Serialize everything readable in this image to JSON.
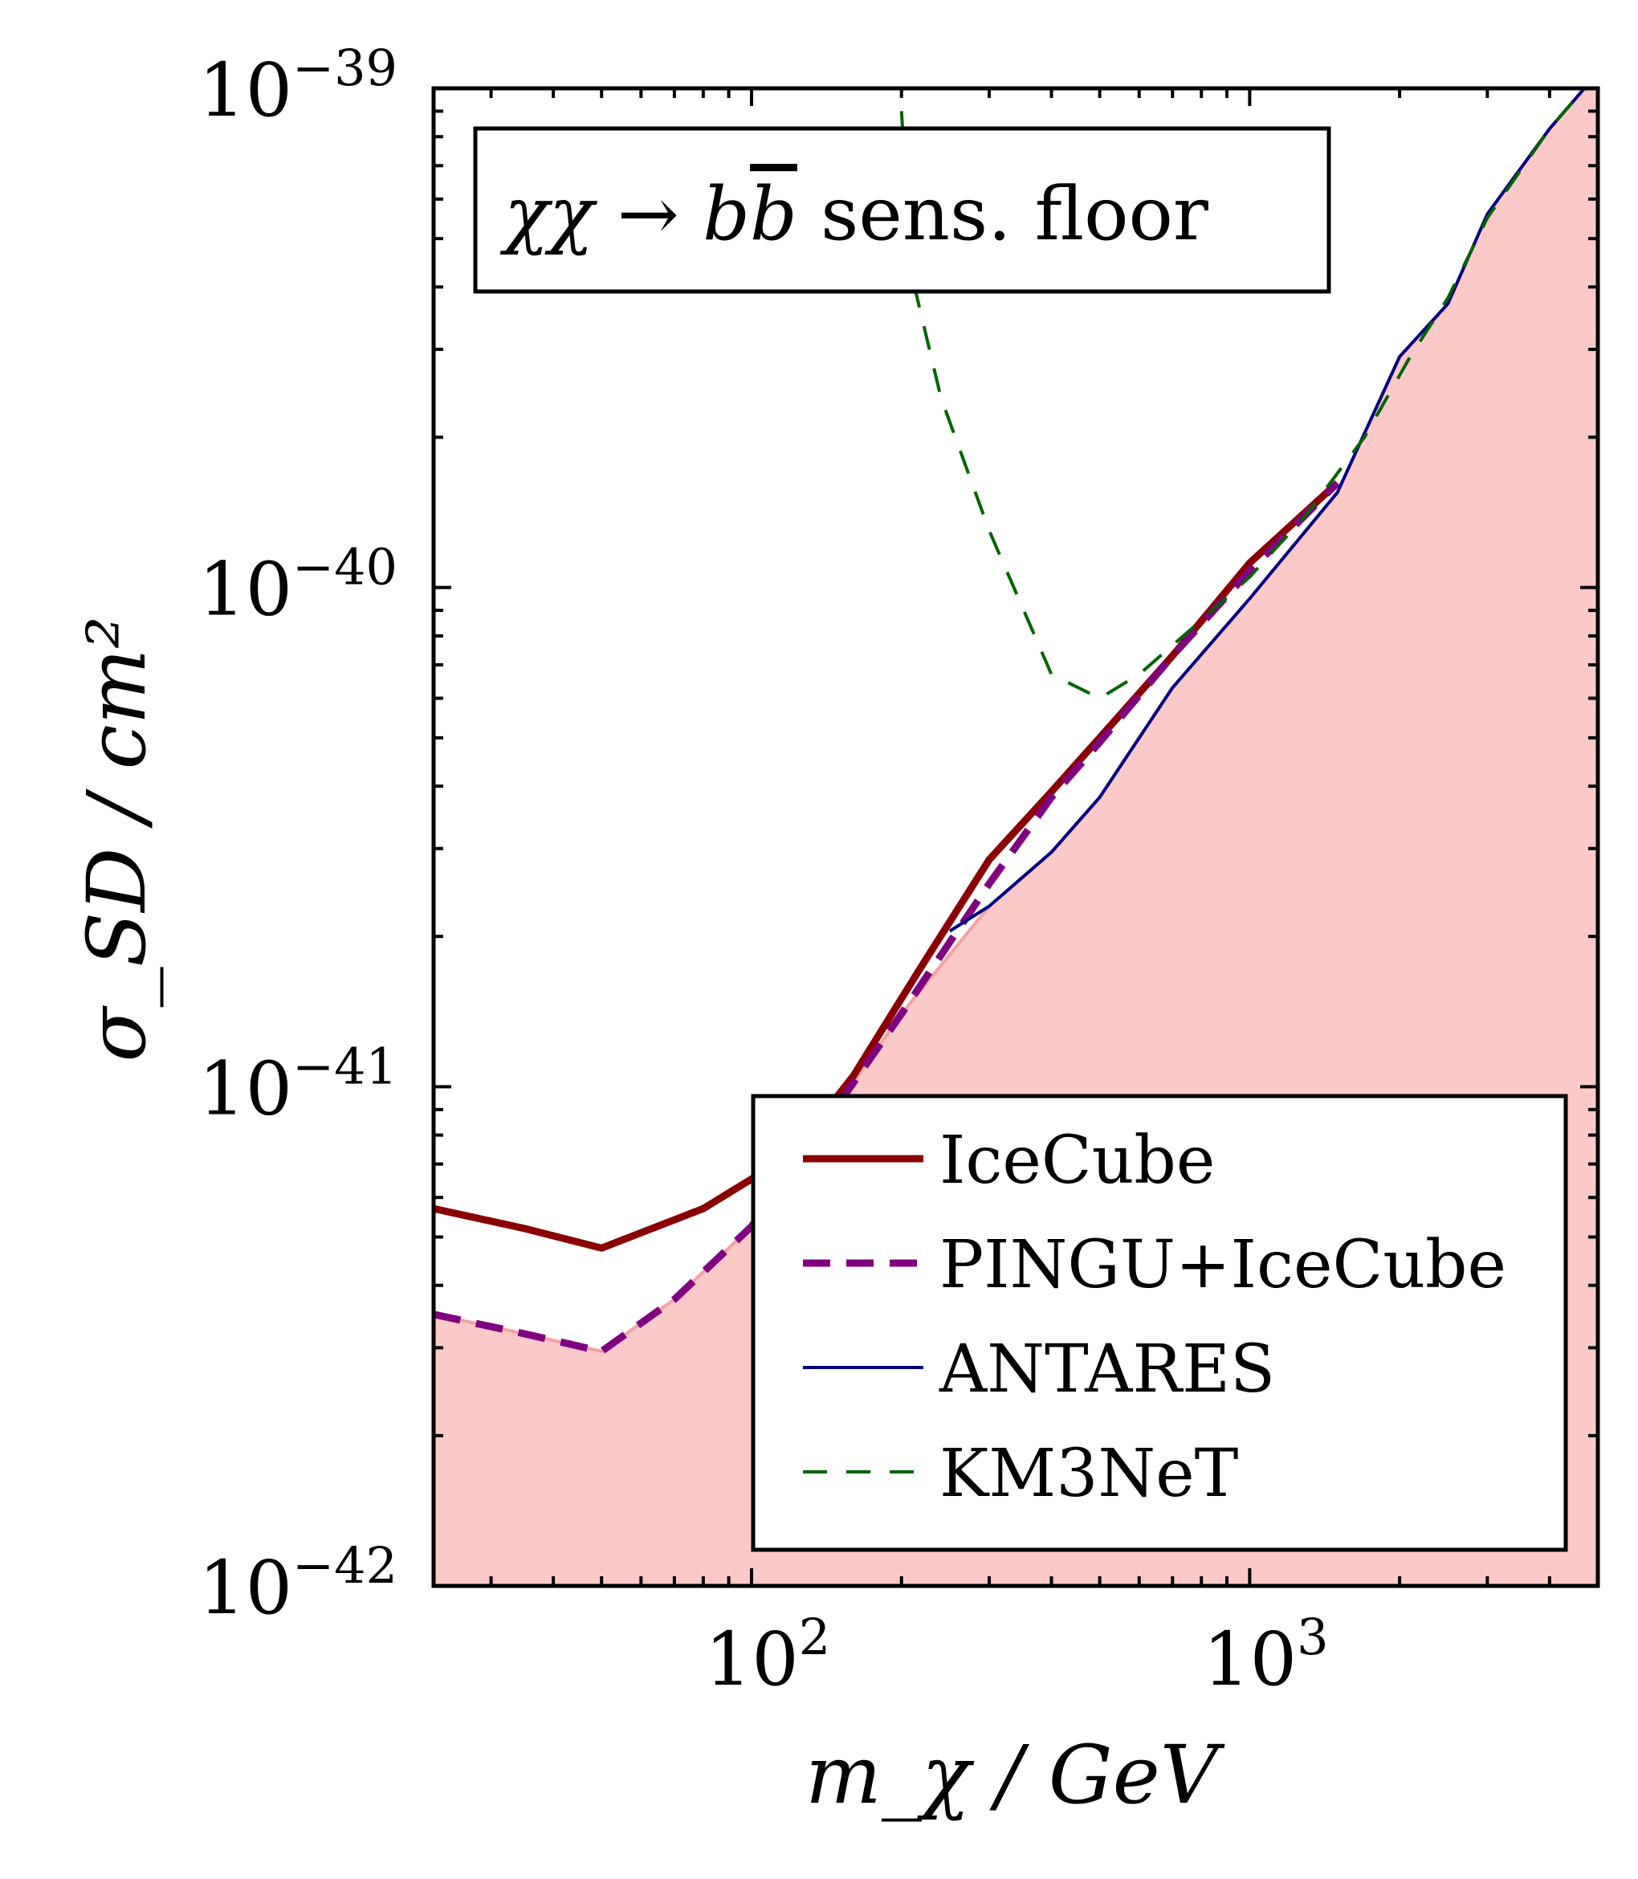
{
  "chart_data": {
    "type": "line",
    "title": "",
    "xlabel": "m_χ / GeV",
    "ylabel": "σ_SD / cm²",
    "xscale": "log",
    "yscale": "log",
    "xlim": [
      23,
      5000
    ],
    "ylim": [
      1e-42,
      1e-39
    ],
    "x_ticks": [
      {
        "value": 100,
        "base": "10",
        "exp": "2"
      },
      {
        "value": 1000,
        "base": "10",
        "exp": "3"
      }
    ],
    "y_ticks": [
      {
        "value": 1e-42,
        "base": "10",
        "exp": "−42"
      },
      {
        "value": 1e-41,
        "base": "10",
        "exp": "−41"
      },
      {
        "value": 1e-40,
        "base": "10",
        "exp": "−40"
      },
      {
        "value": 1e-39,
        "base": "10",
        "exp": "−39"
      }
    ],
    "annotation": {
      "text_main": "χχ → b",
      "text_bar": "b",
      "text_tail": " sens.  floor",
      "location": "top-left"
    },
    "legend_location": "lower-right",
    "fill": {
      "name": "sensitivity floor",
      "color": "#fcc9c9",
      "edge_color": "#f5a0a0"
    },
    "series": [
      {
        "name": "IceCube",
        "color": "#8b0000",
        "style": "solid",
        "width": 9,
        "x": [
          23,
          35,
          50,
          80,
          120,
          160,
          220,
          300,
          400,
          500,
          700,
          1000,
          1500
        ],
        "y": [
          5.7e-42,
          5.2e-42,
          4.75e-42,
          5.7e-42,
          7.3e-42,
          1.05e-41,
          1.75e-41,
          2.85e-41,
          3.9e-41,
          5e-41,
          7.3e-41,
          1.12e-40,
          1.62e-40
        ]
      },
      {
        "name": "PINGU+IceCube",
        "color": "#800080",
        "style": "dashed",
        "width": 9,
        "x": [
          23,
          35,
          50,
          70,
          100,
          140,
          200,
          300,
          400,
          500,
          700,
          1000,
          1500
        ],
        "y": [
          3.5e-42,
          3.2e-42,
          2.95e-42,
          3.75e-42,
          5.25e-42,
          8.4e-42,
          1.4e-41,
          2.55e-41,
          3.8e-41,
          4.9e-41,
          7.3e-41,
          1.08e-40,
          1.62e-40
        ]
      },
      {
        "name": "ANTARES",
        "color": "#000080",
        "style": "solid",
        "width": 4,
        "x": [
          250,
          300,
          400,
          500,
          700,
          1000,
          1500,
          2000,
          2500,
          3000,
          4000,
          4700
        ],
        "y": [
          2.05e-41,
          2.3e-41,
          2.95e-41,
          3.8e-41,
          6.3e-41,
          9.5e-41,
          1.55e-40,
          2.9e-40,
          3.7e-40,
          5.6e-40,
          8.3e-40,
          1e-39
        ]
      },
      {
        "name": "KM3NeT",
        "color": "#006400",
        "style": "dashed",
        "width": 4,
        "x": [
          200,
          210,
          240,
          300,
          400,
          500,
          600,
          800,
          1000,
          1300,
          1700,
          2100,
          2500,
          3000,
          4000,
          4700
        ],
        "y": [
          9e-40,
          4.2e-40,
          2.4e-40,
          1.3e-40,
          6.7e-41,
          6e-41,
          6.7e-41,
          8.6e-41,
          1.05e-40,
          1.4e-40,
          2e-40,
          2.9e-40,
          3.8e-40,
          5.5e-40,
          8.3e-40,
          1e-39
        ]
      }
    ]
  }
}
